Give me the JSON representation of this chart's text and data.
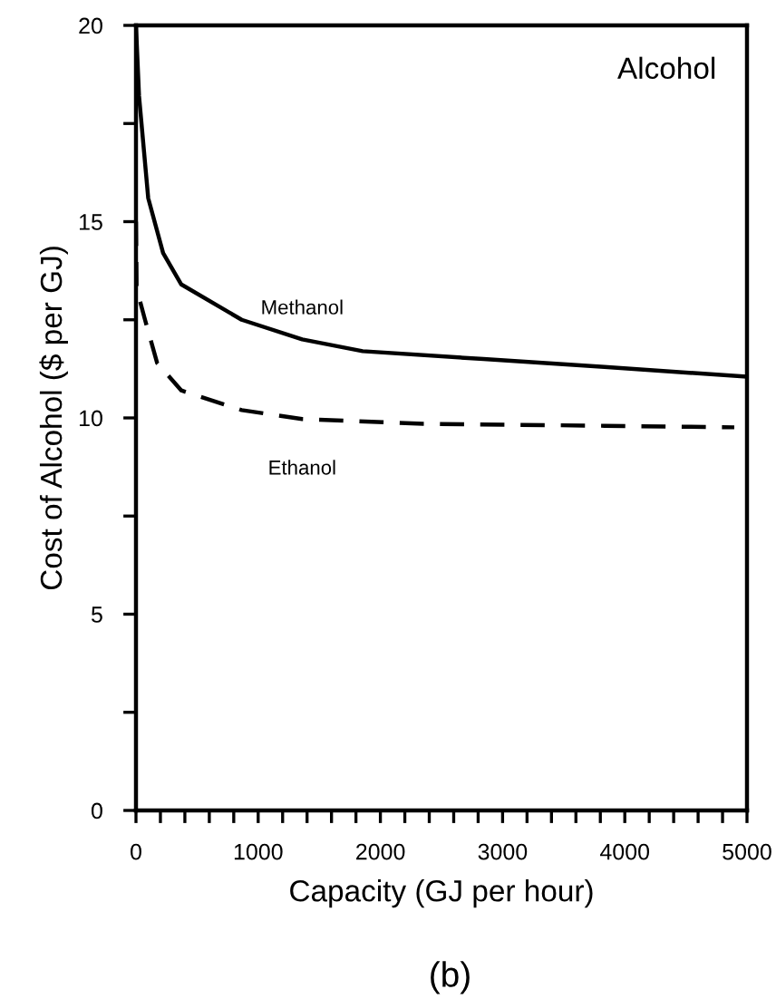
{
  "chart_data": {
    "type": "line",
    "title": "Alcohol",
    "xlabel": "Capacity (GJ per hour)",
    "ylabel": "Cost of Alcohol ($ per GJ)",
    "annotations": [
      "(b)"
    ],
    "series": [
      {
        "name": "Methanol",
        "color": "#000000",
        "line_style": "solid",
        "x": [
          0,
          25,
          100,
          222,
          371,
          865,
          1360,
          1855,
          2844,
          3833,
          5000
        ],
        "values": [
          20,
          18.2,
          15.6,
          14.2,
          13.4,
          12.5,
          12.0,
          11.7,
          11.5,
          11.3,
          11.05
        ]
      },
      {
        "name": "Ethanol",
        "color": "#000000",
        "line_style": "dashed",
        "x": [
          0,
          5,
          74,
          173,
          371,
          865,
          1360,
          2350,
          3833,
          4896
        ],
        "values": [
          15,
          13.3,
          12.5,
          11.4,
          10.7,
          10.2,
          9.97,
          9.85,
          9.8,
          9.76
        ]
      }
    ],
    "xlim": [
      0,
      5000
    ],
    "ylim": [
      0,
      20
    ],
    "xticks": [
      0,
      {
        "value": 200,
        "label": null
      },
      {
        "value": 400,
        "label": null
      },
      {
        "value": 600,
        "label": null
      },
      {
        "value": 800,
        "label": null
      },
      1000,
      {
        "value": 1200,
        "label": null
      },
      {
        "value": 1400,
        "label": null
      },
      {
        "value": 1600,
        "label": null
      },
      {
        "value": 1800,
        "label": null
      },
      2000,
      {
        "value": 2200,
        "label": null
      },
      {
        "value": 2400,
        "label": null
      },
      {
        "value": 2600,
        "label": null
      },
      {
        "value": 2800,
        "label": null
      },
      3000,
      {
        "value": 3200,
        "label": null
      },
      {
        "value": 3400,
        "label": null
      },
      {
        "value": 3600,
        "label": null
      },
      {
        "value": 3800,
        "label": null
      },
      4000,
      {
        "value": 4200,
        "label": null
      },
      {
        "value": 4400,
        "label": null
      },
      {
        "value": 4600,
        "label": null
      },
      {
        "value": 4800,
        "label": null
      },
      5000
    ],
    "yticks": [
      0,
      {
        "value": 2.5,
        "label": null
      },
      5,
      {
        "value": 7.5,
        "label": null
      },
      10,
      {
        "value": 12.5,
        "label": null
      },
      15,
      {
        "value": 17.5,
        "label": null
      },
      20
    ],
    "grid": false,
    "legend": false,
    "marker": "none"
  }
}
